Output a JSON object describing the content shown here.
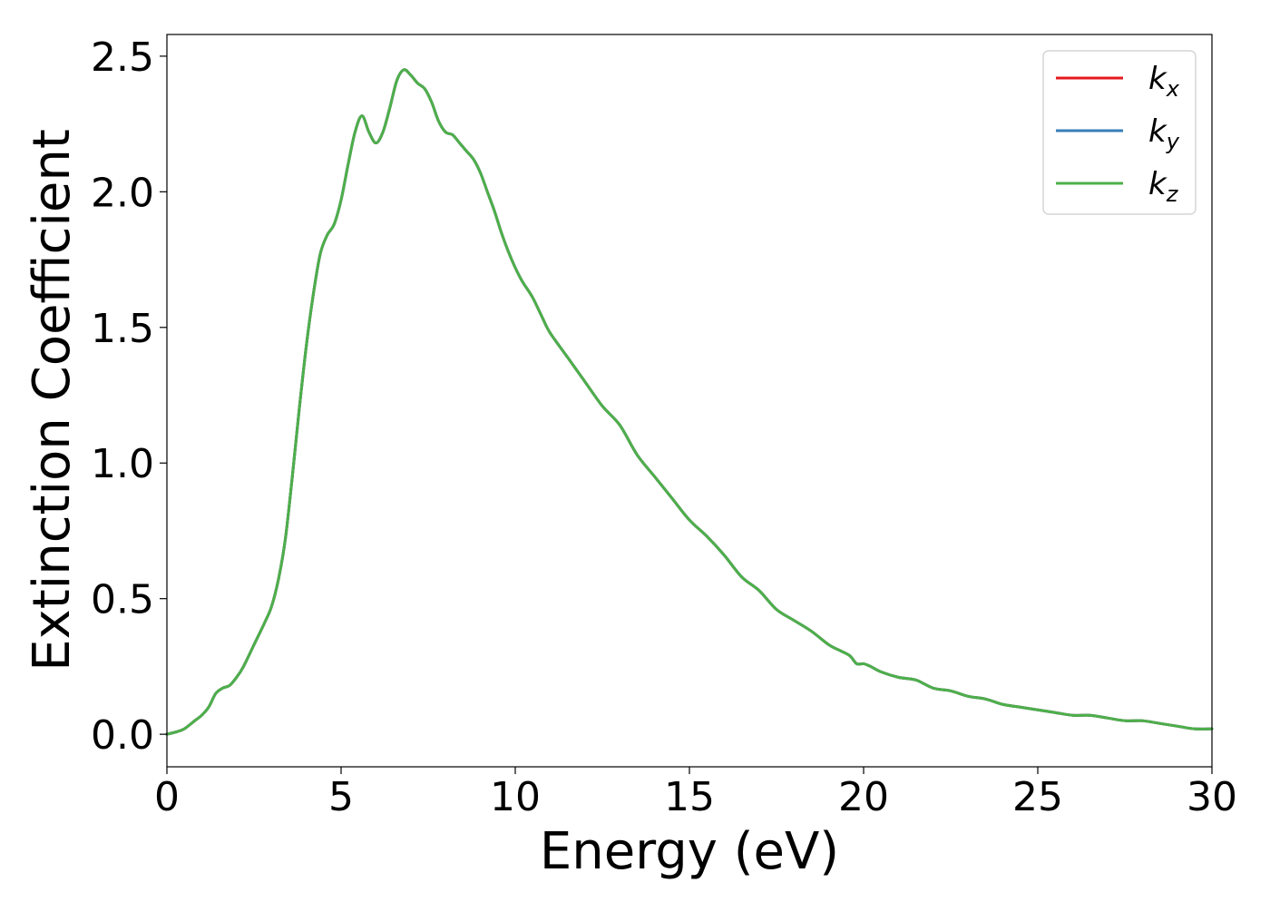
{
  "chart_data": {
    "type": "line",
    "title": "",
    "xlabel": "Energy (eV)",
    "ylabel": "Extinction Coefficient",
    "xlim": [
      0,
      30
    ],
    "ylim": [
      -0.12,
      2.58
    ],
    "xticks": [
      0,
      5,
      10,
      15,
      20,
      25,
      30
    ],
    "yticks": [
      0.0,
      0.5,
      1.0,
      1.5,
      2.0,
      2.5
    ],
    "xtick_labels": [
      "0",
      "5",
      "10",
      "15",
      "20",
      "25",
      "30"
    ],
    "ytick_labels": [
      "0.0",
      "0.5",
      "1.0",
      "1.5",
      "2.0",
      "2.5"
    ],
    "grid": false,
    "legend_position": "top-right",
    "x": [
      0,
      0.3,
      0.5,
      0.8,
      1.0,
      1.2,
      1.4,
      1.6,
      1.8,
      2.0,
      2.2,
      2.5,
      2.8,
      3.0,
      3.2,
      3.4,
      3.6,
      3.8,
      4.0,
      4.2,
      4.4,
      4.6,
      4.8,
      5.0,
      5.2,
      5.4,
      5.6,
      5.8,
      6.0,
      6.2,
      6.4,
      6.6,
      6.8,
      7.0,
      7.2,
      7.4,
      7.6,
      7.8,
      8.0,
      8.2,
      8.4,
      8.6,
      8.8,
      9.0,
      9.2,
      9.4,
      9.6,
      9.8,
      10.0,
      10.2,
      10.5,
      10.8,
      11.0,
      11.5,
      12.0,
      12.5,
      13.0,
      13.5,
      14.0,
      14.5,
      15.0,
      15.5,
      16.0,
      16.5,
      17.0,
      17.5,
      18.0,
      18.5,
      19.0,
      19.3,
      19.6,
      19.8,
      20.0,
      20.2,
      20.5,
      21.0,
      21.5,
      22.0,
      22.5,
      23.0,
      23.5,
      24.0,
      24.5,
      25.0,
      25.5,
      26.0,
      26.5,
      27.0,
      27.5,
      28.0,
      28.5,
      29.0,
      29.5,
      30.0
    ],
    "series": [
      {
        "name": "k_x",
        "legend_main": "k",
        "legend_sub": "x",
        "color": "#e41a1c",
        "values": [
          0.0,
          0.01,
          0.02,
          0.05,
          0.07,
          0.1,
          0.15,
          0.17,
          0.18,
          0.21,
          0.25,
          0.33,
          0.41,
          0.47,
          0.57,
          0.72,
          0.95,
          1.2,
          1.43,
          1.62,
          1.77,
          1.84,
          1.88,
          1.97,
          2.1,
          2.22,
          2.28,
          2.22,
          2.18,
          2.22,
          2.31,
          2.41,
          2.45,
          2.43,
          2.4,
          2.38,
          2.33,
          2.26,
          2.22,
          2.21,
          2.18,
          2.15,
          2.12,
          2.07,
          2.0,
          1.93,
          1.85,
          1.78,
          1.72,
          1.67,
          1.61,
          1.53,
          1.48,
          1.39,
          1.3,
          1.21,
          1.14,
          1.03,
          0.95,
          0.87,
          0.79,
          0.73,
          0.66,
          0.58,
          0.53,
          0.46,
          0.42,
          0.38,
          0.33,
          0.31,
          0.29,
          0.26,
          0.26,
          0.25,
          0.23,
          0.21,
          0.2,
          0.17,
          0.16,
          0.14,
          0.13,
          0.11,
          0.1,
          0.09,
          0.08,
          0.07,
          0.07,
          0.06,
          0.05,
          0.05,
          0.04,
          0.03,
          0.02,
          0.02
        ]
      },
      {
        "name": "k_y",
        "legend_main": "k",
        "legend_sub": "y",
        "color": "#377eb8",
        "values": [
          0.0,
          0.01,
          0.02,
          0.05,
          0.07,
          0.1,
          0.15,
          0.17,
          0.18,
          0.21,
          0.25,
          0.33,
          0.41,
          0.47,
          0.57,
          0.72,
          0.95,
          1.2,
          1.43,
          1.62,
          1.77,
          1.84,
          1.88,
          1.97,
          2.1,
          2.22,
          2.28,
          2.22,
          2.18,
          2.22,
          2.31,
          2.41,
          2.45,
          2.43,
          2.4,
          2.38,
          2.33,
          2.26,
          2.22,
          2.21,
          2.18,
          2.15,
          2.12,
          2.07,
          2.0,
          1.93,
          1.85,
          1.78,
          1.72,
          1.67,
          1.61,
          1.53,
          1.48,
          1.39,
          1.3,
          1.21,
          1.14,
          1.03,
          0.95,
          0.87,
          0.79,
          0.73,
          0.66,
          0.58,
          0.53,
          0.46,
          0.42,
          0.38,
          0.33,
          0.31,
          0.29,
          0.26,
          0.26,
          0.25,
          0.23,
          0.21,
          0.2,
          0.17,
          0.16,
          0.14,
          0.13,
          0.11,
          0.1,
          0.09,
          0.08,
          0.07,
          0.07,
          0.06,
          0.05,
          0.05,
          0.04,
          0.03,
          0.02,
          0.02
        ]
      },
      {
        "name": "k_z",
        "legend_main": "k",
        "legend_sub": "z",
        "color": "#4daf4a",
        "values": [
          0.0,
          0.01,
          0.02,
          0.05,
          0.07,
          0.1,
          0.15,
          0.17,
          0.18,
          0.21,
          0.25,
          0.33,
          0.41,
          0.47,
          0.57,
          0.72,
          0.95,
          1.2,
          1.43,
          1.62,
          1.77,
          1.84,
          1.88,
          1.97,
          2.1,
          2.22,
          2.28,
          2.22,
          2.18,
          2.22,
          2.31,
          2.41,
          2.45,
          2.43,
          2.4,
          2.38,
          2.33,
          2.26,
          2.22,
          2.21,
          2.18,
          2.15,
          2.12,
          2.07,
          2.0,
          1.93,
          1.85,
          1.78,
          1.72,
          1.67,
          1.61,
          1.53,
          1.48,
          1.39,
          1.3,
          1.21,
          1.14,
          1.03,
          0.95,
          0.87,
          0.79,
          0.73,
          0.66,
          0.58,
          0.53,
          0.46,
          0.42,
          0.38,
          0.33,
          0.31,
          0.29,
          0.26,
          0.26,
          0.25,
          0.23,
          0.21,
          0.2,
          0.17,
          0.16,
          0.14,
          0.13,
          0.11,
          0.1,
          0.09,
          0.08,
          0.07,
          0.07,
          0.06,
          0.05,
          0.05,
          0.04,
          0.03,
          0.02,
          0.02
        ]
      }
    ]
  }
}
